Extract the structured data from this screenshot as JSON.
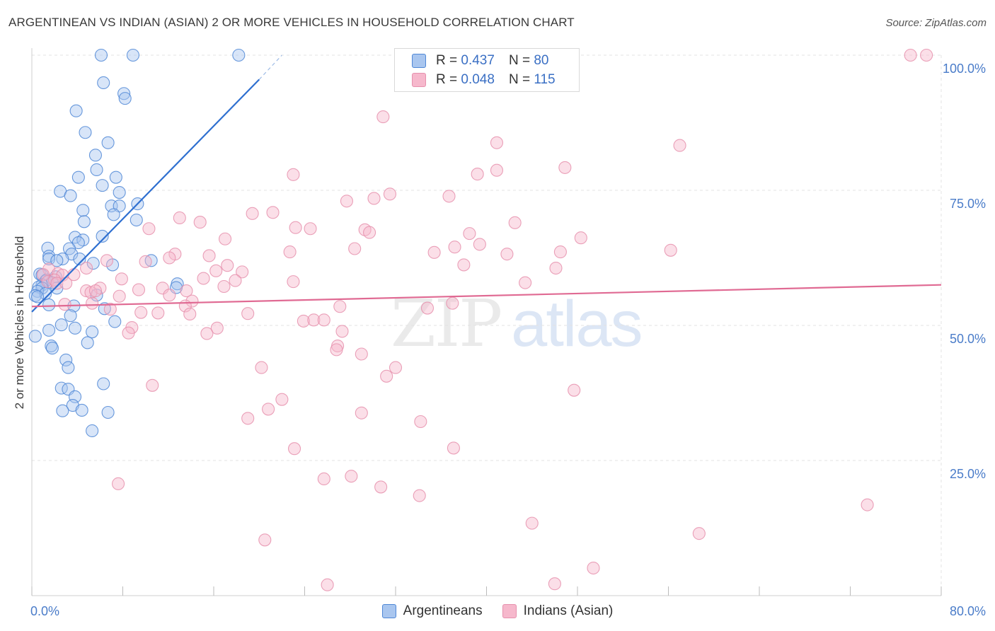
{
  "title": "ARGENTINEAN VS INDIAN (ASIAN) 2 OR MORE VEHICLES IN HOUSEHOLD CORRELATION CHART",
  "source": "Source: ZipAtlas.com",
  "watermark": {
    "zip": "ZIP",
    "atlas": "atlas"
  },
  "legend_top": [
    {
      "r_label": "R =",
      "r_value": "0.437",
      "n_label": "N =",
      "n_value": "80"
    },
    {
      "r_label": "R =",
      "r_value": "0.048",
      "n_label": "N =",
      "n_value": "115"
    }
  ],
  "legend_bottom": [
    {
      "label": "Argentineans"
    },
    {
      "label": "Indians (Asian)"
    }
  ],
  "colors": {
    "argentineans_fill": "#a9c6ef",
    "argentineans_stroke": "#4f87d6",
    "argentineans_line": "#2e6fd0",
    "indians_fill": "#f6b8cc",
    "indians_stroke": "#e690ad",
    "indians_line": "#e06a93",
    "tick_text": "#4a7cc9",
    "grid": "#e3e3e3"
  },
  "chart_data": {
    "type": "scatter",
    "title": "ARGENTINEAN VS INDIAN (ASIAN) 2 OR MORE VEHICLES IN HOUSEHOLD CORRELATION CHART",
    "ylabel": "2 or more Vehicles in Household",
    "xlabel": "",
    "xlim": [
      0,
      80
    ],
    "ylim": [
      0,
      100
    ],
    "x_tick_labels": [
      "0.0%",
      "80.0%"
    ],
    "y_tick_labels": [
      {
        "value": 100,
        "label": "100.0%"
      },
      {
        "value": 75,
        "label": "75.0%"
      },
      {
        "value": 50,
        "label": "50.0%"
      },
      {
        "value": 25,
        "label": "25.0%"
      }
    ],
    "grid": true,
    "legend": "top-center",
    "series": [
      {
        "name": "Argentineans",
        "r": 0.437,
        "n": 80,
        "trend": {
          "x0": 0.0,
          "y0": 52.5,
          "x1": 20.0,
          "y1": 95.5,
          "dash_x1": 22.0,
          "dash_y1": 100.0
        },
        "points": [
          [
            6.1,
            100
          ],
          [
            8.9,
            100
          ],
          [
            18.2,
            100
          ],
          [
            6.3,
            94.9
          ],
          [
            8.1,
            92.9
          ],
          [
            8.2,
            92.0
          ],
          [
            3.9,
            89.7
          ],
          [
            4.7,
            85.7
          ],
          [
            6.7,
            83.8
          ],
          [
            5.6,
            81.5
          ],
          [
            5.7,
            78.8
          ],
          [
            4.1,
            77.4
          ],
          [
            7.4,
            77.4
          ],
          [
            6.2,
            75.9
          ],
          [
            2.5,
            74.8
          ],
          [
            7.7,
            74.6
          ],
          [
            3.4,
            74.0
          ],
          [
            7.0,
            72.1
          ],
          [
            9.3,
            72.5
          ],
          [
            7.7,
            72.1
          ],
          [
            4.5,
            71.3
          ],
          [
            7.2,
            70.5
          ],
          [
            9.2,
            69.5
          ],
          [
            4.6,
            69.2
          ],
          [
            6.2,
            66.5
          ],
          [
            3.8,
            66.3
          ],
          [
            4.5,
            65.8
          ],
          [
            4.1,
            65.3
          ],
          [
            1.4,
            64.3
          ],
          [
            3.3,
            64.2
          ],
          [
            3.5,
            63.2
          ],
          [
            1.5,
            62.8
          ],
          [
            2.7,
            62.3
          ],
          [
            1.5,
            62.3
          ],
          [
            4.2,
            62.3
          ],
          [
            7.1,
            61.2
          ],
          [
            2.2,
            62.0
          ],
          [
            5.4,
            61.5
          ],
          [
            10.5,
            62.0
          ],
          [
            0.7,
            59.5
          ],
          [
            0.9,
            59.3
          ],
          [
            1.2,
            58.2
          ],
          [
            2.1,
            59.0
          ],
          [
            1.3,
            58.4
          ],
          [
            1.8,
            57.9
          ],
          [
            0.9,
            57.5
          ],
          [
            0.6,
            57.1
          ],
          [
            0.9,
            56.9
          ],
          [
            0.5,
            56.3
          ],
          [
            1.2,
            55.9
          ],
          [
            0.3,
            55.5
          ],
          [
            0.5,
            55.3
          ],
          [
            2.2,
            56.9
          ],
          [
            5.7,
            55.6
          ],
          [
            12.8,
            57.7
          ],
          [
            12.7,
            57.0
          ],
          [
            3.7,
            53.6
          ],
          [
            6.4,
            53.1
          ],
          [
            1.5,
            53.8
          ],
          [
            3.4,
            51.8
          ],
          [
            7.3,
            50.7
          ],
          [
            2.6,
            50.1
          ],
          [
            3.8,
            49.5
          ],
          [
            1.5,
            49.1
          ],
          [
            5.3,
            48.8
          ],
          [
            0.3,
            48.0
          ],
          [
            4.9,
            46.8
          ],
          [
            1.7,
            46.2
          ],
          [
            1.8,
            45.8
          ],
          [
            3.0,
            43.6
          ],
          [
            3.2,
            42.2
          ],
          [
            6.3,
            39.2
          ],
          [
            2.6,
            38.4
          ],
          [
            3.2,
            38.2
          ],
          [
            3.8,
            36.8
          ],
          [
            3.6,
            35.2
          ],
          [
            2.7,
            34.2
          ],
          [
            4.4,
            34.3
          ],
          [
            6.7,
            33.9
          ],
          [
            5.3,
            30.5
          ]
        ]
      },
      {
        "name": "Indians (Asian)",
        "r": 0.048,
        "n": 115,
        "trend": {
          "x0": 0.0,
          "y0": 53.5,
          "x1": 80.0,
          "y1": 57.5
        },
        "points": [
          [
            77.3,
            100
          ],
          [
            78.7,
            100
          ],
          [
            30.9,
            88.6
          ],
          [
            40.9,
            83.8
          ],
          [
            57.0,
            83.3
          ],
          [
            23.0,
            77.9
          ],
          [
            39.2,
            78.0
          ],
          [
            40.9,
            78.7
          ],
          [
            46.9,
            79.2
          ],
          [
            31.5,
            74.3
          ],
          [
            36.7,
            73.9
          ],
          [
            27.7,
            73.0
          ],
          [
            30.1,
            73.5
          ],
          [
            21.2,
            70.9
          ],
          [
            19.4,
            70.7
          ],
          [
            13.0,
            69.9
          ],
          [
            14.8,
            69.1
          ],
          [
            42.5,
            69.0
          ],
          [
            10.3,
            67.9
          ],
          [
            23.2,
            68.1
          ],
          [
            24.5,
            67.9
          ],
          [
            29.3,
            67.7
          ],
          [
            29.7,
            67.2
          ],
          [
            38.5,
            67.0
          ],
          [
            17.0,
            66.0
          ],
          [
            48.3,
            66.2
          ],
          [
            39.4,
            65.0
          ],
          [
            37.2,
            64.5
          ],
          [
            28.4,
            64.2
          ],
          [
            22.7,
            63.6
          ],
          [
            35.4,
            63.5
          ],
          [
            41.8,
            63.2
          ],
          [
            46.5,
            63.6
          ],
          [
            56.2,
            63.9
          ],
          [
            12.6,
            63.2
          ],
          [
            15.6,
            62.9
          ],
          [
            12.1,
            62.5
          ],
          [
            10.0,
            61.8
          ],
          [
            6.6,
            62.0
          ],
          [
            38.0,
            61.2
          ],
          [
            17.2,
            61.1
          ],
          [
            16.2,
            60.1
          ],
          [
            18.5,
            59.9
          ],
          [
            46.1,
            60.6
          ],
          [
            4.8,
            60.6
          ],
          [
            1.5,
            60.4
          ],
          [
            2.3,
            59.6
          ],
          [
            3.7,
            59.4
          ],
          [
            2.7,
            59.3
          ],
          [
            1.0,
            59.4
          ],
          [
            1.4,
            58.1
          ],
          [
            2.0,
            58.4
          ],
          [
            2.2,
            57.8
          ],
          [
            3.0,
            57.8
          ],
          [
            7.9,
            58.6
          ],
          [
            15.1,
            58.7
          ],
          [
            17.9,
            58.3
          ],
          [
            23.0,
            58.1
          ],
          [
            43.4,
            57.9
          ],
          [
            6.0,
            56.9
          ],
          [
            11.5,
            56.9
          ],
          [
            9.4,
            56.6
          ],
          [
            16.9,
            57.2
          ],
          [
            4.8,
            56.4
          ],
          [
            5.2,
            56.1
          ],
          [
            5.6,
            56.4
          ],
          [
            13.6,
            56.4
          ],
          [
            12.1,
            55.6
          ],
          [
            7.7,
            55.4
          ],
          [
            14.1,
            54.5
          ],
          [
            5.3,
            54.1
          ],
          [
            2.9,
            53.9
          ],
          [
            13.5,
            53.6
          ],
          [
            27.1,
            53.5
          ],
          [
            34.8,
            53.2
          ],
          [
            6.9,
            53.0
          ],
          [
            9.6,
            52.4
          ],
          [
            11.1,
            52.3
          ],
          [
            13.9,
            52.1
          ],
          [
            19.0,
            52.2
          ],
          [
            37.0,
            54.1
          ],
          [
            23.9,
            50.8
          ],
          [
            24.8,
            51.0
          ],
          [
            25.7,
            51.0
          ],
          [
            8.8,
            49.6
          ],
          [
            16.3,
            49.5
          ],
          [
            15.4,
            48.5
          ],
          [
            8.5,
            48.6
          ],
          [
            27.3,
            48.9
          ],
          [
            26.9,
            46.2
          ],
          [
            26.8,
            45.5
          ],
          [
            29.0,
            44.7
          ],
          [
            20.2,
            42.2
          ],
          [
            32.0,
            42.2
          ],
          [
            31.2,
            40.6
          ],
          [
            10.6,
            38.9
          ],
          [
            47.7,
            38.0
          ],
          [
            22.0,
            36.3
          ],
          [
            20.8,
            34.5
          ],
          [
            29.0,
            33.8
          ],
          [
            19.0,
            32.8
          ],
          [
            34.2,
            32.2
          ],
          [
            23.1,
            27.2
          ],
          [
            37.1,
            27.3
          ],
          [
            25.7,
            21.6
          ],
          [
            28.1,
            22.1
          ],
          [
            7.6,
            20.7
          ],
          [
            30.7,
            20.1
          ],
          [
            34.1,
            18.5
          ],
          [
            73.5,
            16.8
          ],
          [
            44.0,
            13.4
          ],
          [
            58.7,
            11.5
          ],
          [
            20.5,
            10.3
          ],
          [
            49.4,
            5.1
          ],
          [
            26.0,
            2.0
          ],
          [
            46.0,
            2.2
          ]
        ]
      }
    ]
  }
}
